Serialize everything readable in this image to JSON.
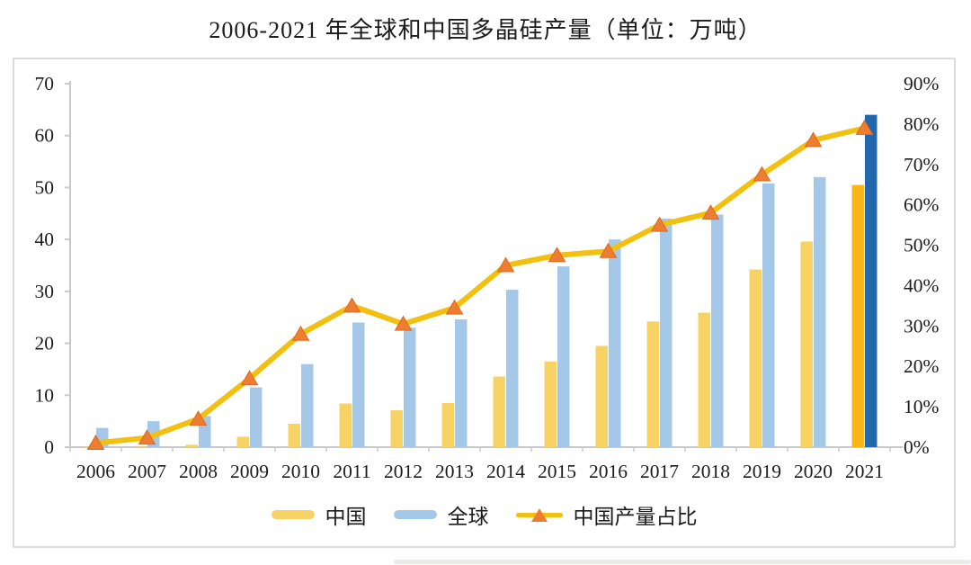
{
  "title": "2006-2021 年全球和中国多晶硅产量（单位：万吨）",
  "chart_data": {
    "type": "bar",
    "combo": "bar+line dual axis",
    "title": "2006-2021 年全球和中国多晶硅产量（单位：万吨）",
    "unit": "万吨",
    "categories": [
      "2006",
      "2007",
      "2008",
      "2009",
      "2010",
      "2011",
      "2012",
      "2013",
      "2014",
      "2015",
      "2016",
      "2017",
      "2018",
      "2019",
      "2020",
      "2021"
    ],
    "series": [
      {
        "name": "中国",
        "type": "bar",
        "axis": "left",
        "values": [
          0.03,
          0.1,
          0.45,
          2,
          4.5,
          8.4,
          7.1,
          8.5,
          13.6,
          16.5,
          19.5,
          24.2,
          25.9,
          34.2,
          39.6,
          50.5
        ]
      },
      {
        "name": "全球",
        "type": "bar",
        "axis": "left",
        "values": [
          3.7,
          5,
          6,
          11.5,
          16,
          24,
          23,
          24.6,
          30.3,
          34.8,
          40,
          44,
          44.8,
          50.8,
          52,
          64
        ]
      },
      {
        "name": "中国产量占比",
        "type": "line",
        "axis": "right",
        "unit": "%",
        "values": [
          1,
          2.3,
          7,
          17,
          28,
          35,
          30.5,
          34.5,
          45,
          47.5,
          48.5,
          55,
          58,
          67.5,
          76,
          79
        ]
      }
    ],
    "left_axis": {
      "min": 0,
      "max": 70,
      "step": 10,
      "ticks": [
        "0",
        "10",
        "20",
        "30",
        "40",
        "50",
        "60",
        "70"
      ]
    },
    "right_axis": {
      "min": 0,
      "max": 90,
      "step": 10,
      "ticks": [
        "0%",
        "10%",
        "20%",
        "30%",
        "40%",
        "50%",
        "60%",
        "70%",
        "80%",
        "90%"
      ]
    },
    "highlight_index": 15,
    "legend_position": "bottom",
    "grid": false
  },
  "colors": {
    "china_bar": "#F7D264",
    "global_bar": "#A5C8E8",
    "china_bar_highlight": "#F5B71A",
    "global_bar_highlight": "#2368AD",
    "line": "#F2C011",
    "marker": "#ED7D31",
    "marker_edge": "#E0691F",
    "axis_line": "#C9C9C9",
    "frame_border": "#DBDBDB",
    "text": "#1C1C1C"
  }
}
